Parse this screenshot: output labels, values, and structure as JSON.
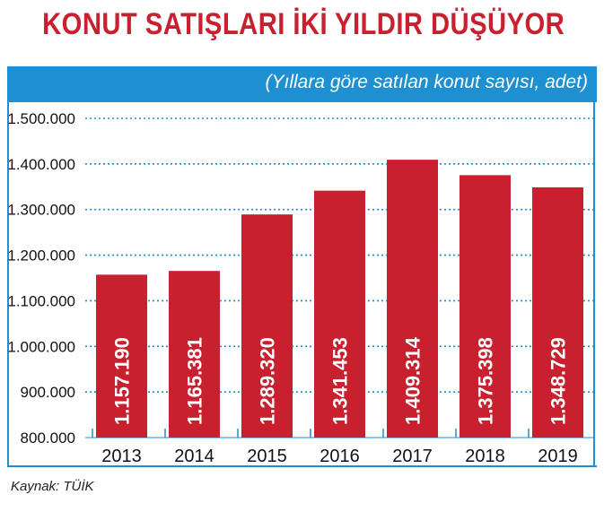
{
  "colors": {
    "title": "#c8202f",
    "band": "#1e8fd0",
    "bar": "#c8202f",
    "bar_label": "#ffffff",
    "grid": "#1e8fd0"
  },
  "header": {
    "title": "KONUT SATIŞLARI İKİ YILDIR DÜŞÜYOR",
    "subtitle": "(Yıllara göre satılan konut sayısı, adet)"
  },
  "footer": {
    "source": "Kaynak:  TÜİK"
  },
  "chart_data": {
    "type": "bar",
    "categories": [
      "2013",
      "2014",
      "2015",
      "2016",
      "2017",
      "2018",
      "2019"
    ],
    "values": [
      1157190,
      1165381,
      1289320,
      1341453,
      1409314,
      1375398,
      1348729
    ],
    "value_labels": [
      "1.157.190",
      "1.165.381",
      "1.289.320",
      "1.341.453",
      "1.409.314",
      "1.375.398",
      "1.348.729"
    ],
    "yticks": [
      800000,
      900000,
      1000000,
      1100000,
      1200000,
      1300000,
      1400000,
      1500000
    ],
    "ytick_labels": [
      "800.000",
      "900.000",
      "1.000.000",
      "1.100.000",
      "1.200.000",
      "1.300.000",
      "1.400.000",
      "1.500.000"
    ],
    "ylim": [
      800000,
      1500000
    ],
    "grid": true,
    "grid_style": "dotted"
  }
}
